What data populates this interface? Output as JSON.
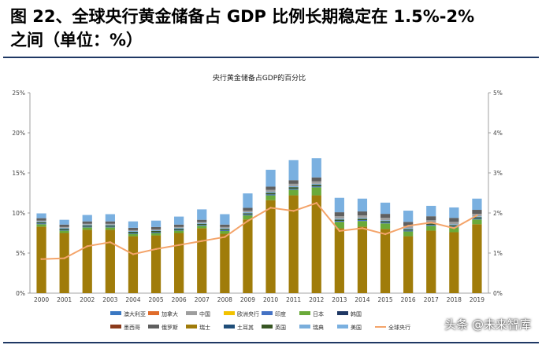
{
  "heading": {
    "line1": "图 22、全球央行黄金储备占 GDP 比例长期稳定在 1.5%-2%",
    "line2": "之间（单位：%）"
  },
  "watermark": "头条 @未来智库",
  "chart_data": {
    "type": "bar",
    "title": "央行黄金储备占GDP的百分比",
    "categories": [
      "2000",
      "2001",
      "2002",
      "2003",
      "2004",
      "2005",
      "2006",
      "2007",
      "2008",
      "2009",
      "2010",
      "2011",
      "2012",
      "2013",
      "2014",
      "2015",
      "2016",
      "2017",
      "2018",
      "2019"
    ],
    "left_axis": {
      "ylim": [
        0,
        25
      ],
      "ticks": [
        "0%",
        "5%",
        "10%",
        "15%",
        "20%",
        "25%"
      ]
    },
    "right_axis": {
      "ylim": [
        0,
        5
      ],
      "ticks": [
        "0%",
        "1%",
        "2%",
        "3%",
        "4%",
        "5%"
      ]
    },
    "stack_order": [
      "瑞士",
      "日本",
      "印度",
      "英国",
      "瑞典",
      "中国",
      "俄罗斯",
      "美国"
    ],
    "series": [
      {
        "name": "澳大利亚",
        "color": "#3a78c2",
        "values": [
          0.05,
          0.05,
          0.05,
          0.05,
          0.05,
          0.05,
          0.05,
          0.05,
          0.05,
          0.05,
          0.05,
          0.05,
          0.05,
          0.05,
          0.05,
          0.05,
          0.05,
          0.05,
          0.05,
          0.05
        ]
      },
      {
        "name": "加拿大",
        "color": "#e06c2b",
        "values": [
          0.02,
          0.02,
          0.02,
          0.02,
          0.02,
          0.02,
          0.02,
          0.02,
          0.02,
          0.02,
          0.02,
          0.02,
          0.02,
          0.02,
          0.02,
          0.02,
          0.02,
          0.02,
          0.02,
          0.02
        ]
      },
      {
        "name": "中国",
        "color": "#9e9e9e",
        "values": [
          0.1,
          0.1,
          0.1,
          0.1,
          0.1,
          0.1,
          0.1,
          0.1,
          0.15,
          0.2,
          0.25,
          0.3,
          0.3,
          0.3,
          0.3,
          0.3,
          0.3,
          0.3,
          0.3,
          0.3
        ]
      },
      {
        "name": "欧洲央行",
        "color": "#f2c200",
        "values": [
          0,
          0,
          0,
          0,
          0,
          0,
          0,
          0,
          0,
          0,
          0,
          0,
          0,
          0,
          0,
          0,
          0,
          0,
          0,
          0
        ]
      },
      {
        "name": "印度",
        "color": "#4472c4",
        "values": [
          0.1,
          0.1,
          0.1,
          0.1,
          0.1,
          0.1,
          0.1,
          0.1,
          0.1,
          0.12,
          0.12,
          0.12,
          0.12,
          0.12,
          0.12,
          0.12,
          0.12,
          0.12,
          0.12,
          0.12
        ]
      },
      {
        "name": "日本",
        "color": "#6aaa3a",
        "values": [
          0.3,
          0.3,
          0.3,
          0.3,
          0.3,
          0.3,
          0.3,
          0.3,
          0.35,
          0.5,
          0.6,
          0.7,
          1.0,
          0.8,
          0.7,
          0.7,
          0.6,
          0.6,
          0.6,
          0.6
        ]
      },
      {
        "name": "韩国",
        "color": "#1f3864",
        "values": [
          0,
          0,
          0,
          0,
          0,
          0,
          0,
          0,
          0,
          0,
          0,
          0,
          0,
          0,
          0,
          0,
          0,
          0,
          0,
          0
        ]
      },
      {
        "name": "墨西哥",
        "color": "#8b3a1a",
        "values": [
          0,
          0,
          0,
          0,
          0,
          0,
          0,
          0,
          0,
          0,
          0,
          0,
          0,
          0,
          0,
          0,
          0,
          0,
          0,
          0
        ]
      },
      {
        "name": "俄罗斯",
        "color": "#5f5f5f",
        "values": [
          0.3,
          0.3,
          0.3,
          0.3,
          0.3,
          0.3,
          0.3,
          0.3,
          0.3,
          0.35,
          0.4,
          0.45,
          0.5,
          0.5,
          0.5,
          0.5,
          0.5,
          0.5,
          0.5,
          0.5
        ]
      },
      {
        "name": "瑞士",
        "color": "#a07c0a",
        "values": [
          8.3,
          7.5,
          7.9,
          7.9,
          7.1,
          7.2,
          7.5,
          8.1,
          7.4,
          9.2,
          11.6,
          12.2,
          12.2,
          8.1,
          8.3,
          8.0,
          7.1,
          7.8,
          7.6,
          8.6
        ]
      },
      {
        "name": "土耳其",
        "color": "#1f4e79",
        "values": [
          0,
          0,
          0,
          0,
          0,
          0,
          0,
          0,
          0,
          0,
          0,
          0,
          0,
          0,
          0,
          0,
          0,
          0,
          0,
          0
        ]
      },
      {
        "name": "英国",
        "color": "#375623",
        "values": [
          0.15,
          0.15,
          0.15,
          0.15,
          0.15,
          0.15,
          0.15,
          0.15,
          0.15,
          0.15,
          0.2,
          0.2,
          0.2,
          0.15,
          0.15,
          0.15,
          0.15,
          0.15,
          0.15,
          0.15
        ]
      },
      {
        "name": "瑞典",
        "color": "#7aaedc",
        "values": [
          0.1,
          0.1,
          0.1,
          0.1,
          0.1,
          0.1,
          0.1,
          0.1,
          0.1,
          0.12,
          0.12,
          0.12,
          0.12,
          0.12,
          0.12,
          0.12,
          0.12,
          0.12,
          0.12,
          0.12
        ]
      },
      {
        "name": "美国",
        "color": "#7ab0e0",
        "values": [
          0.6,
          0.6,
          0.8,
          0.9,
          0.8,
          0.8,
          1.0,
          1.3,
          1.3,
          1.8,
          2.1,
          2.5,
          2.4,
          1.8,
          1.6,
          1.4,
          1.4,
          1.3,
          1.3,
          1.4
        ]
      },
      {
        "name": "全球央行",
        "type": "line",
        "axis": "right",
        "color": "#f4a46a",
        "values": [
          0.85,
          0.87,
          1.17,
          1.27,
          0.97,
          1.1,
          1.2,
          1.3,
          1.4,
          1.8,
          2.13,
          2.05,
          2.25,
          1.55,
          1.62,
          1.47,
          1.68,
          1.76,
          1.62,
          1.94
        ]
      }
    ],
    "legend_placement": "bottom"
  }
}
